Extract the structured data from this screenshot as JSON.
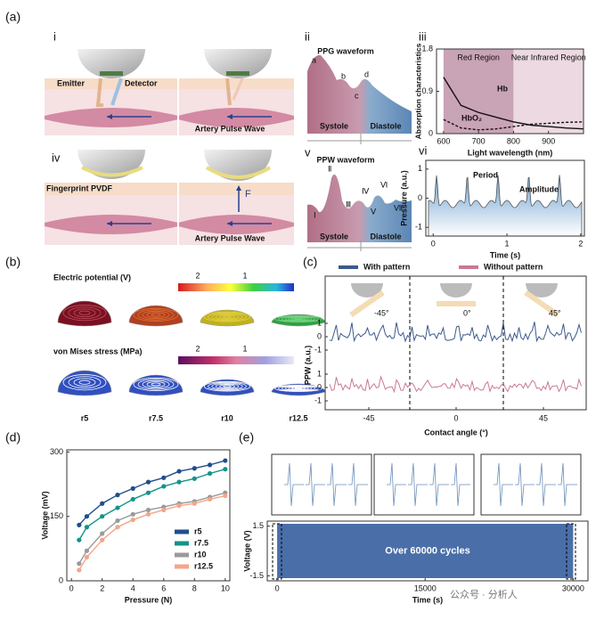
{
  "figure": {
    "a": {
      "label": "(a)",
      "i": "i",
      "ii": "ii",
      "iii": "iii",
      "iv": "iv",
      "v": "v",
      "vi": "vi",
      "emitter": "Emitter",
      "detector": "Detector",
      "pulse_i": "Artery Pulse Wave",
      "ppg_title": "PPG waveform",
      "ppg_points": [
        "a",
        "b",
        "c",
        "d"
      ],
      "systole_ii": "Systole",
      "diastole_ii": "Diastole",
      "fingerprint": "Fingerprint PVDF",
      "force": "F",
      "pulse_iv": "Artery Pulse Wave",
      "ppw_title": "PPW waveform",
      "ppw_points": [
        "Ⅰ",
        "Ⅱ",
        "Ⅲ",
        "Ⅳ",
        "Ⅴ",
        "Ⅵ",
        "Ⅶ"
      ],
      "systole_v": "Systole",
      "diastole_v": "Diastole"
    },
    "b": {
      "label": "(b)",
      "potential_title": "Electric potential (V)",
      "potential_ticks": [
        2,
        1
      ],
      "stress_title": "von Mises stress (MPa)",
      "stress_ticks": [
        2,
        1
      ],
      "samples": [
        "r5",
        "r7.5",
        "r10",
        "r12.5"
      ]
    },
    "c": {
      "label": "(c)",
      "legend": [
        "With pattern",
        "Without pattern"
      ],
      "legend_colors": [
        "#3d5a8c",
        "#c97a93"
      ],
      "angles": [
        "-45°",
        "0°",
        "45°"
      ],
      "xlabel": "Contact angle (°)",
      "ylabel": "PPW (a.u.)",
      "xticks": [
        -45,
        0,
        45
      ],
      "yticks": [
        1,
        0,
        -1
      ]
    },
    "d": {
      "label": "(d)"
    },
    "e": {
      "label": "(e)"
    },
    "watermark": "公众号 · 分析人"
  },
  "chart_data": [
    {
      "type": "line",
      "xlabel": "Light wavelength (nm)",
      "ylabel": "Absorption characteristics",
      "x": [
        600,
        650,
        700,
        750,
        800,
        850,
        900,
        950,
        1000
      ],
      "series": [
        {
          "name": "Hb",
          "color": "#111111",
          "dash": false,
          "values": [
            1.2,
            0.6,
            0.45,
            0.35,
            0.25,
            0.18,
            0.15,
            0.12,
            0.1
          ]
        },
        {
          "name": "HbO₂",
          "color": "#111111",
          "dash": true,
          "values": [
            0.3,
            0.12,
            0.08,
            0.1,
            0.15,
            0.2,
            0.22,
            0.24,
            0.25
          ]
        }
      ],
      "regions": [
        {
          "label": "Red Region",
          "range": [
            600,
            800
          ],
          "color": "#c9a3b6"
        },
        {
          "label": "Near Infrared Region",
          "range": [
            800,
            1000
          ],
          "color": "#ecd9e2"
        }
      ],
      "xlim": [
        580,
        1000
      ],
      "xticks": [
        600,
        700,
        800,
        900
      ],
      "ylim": [
        0,
        1.8
      ],
      "yticks": [
        0,
        0.9,
        1.8
      ]
    },
    {
      "type": "line",
      "xlabel": "Time (s)",
      "ylabel": "Pressure (a.u.)",
      "annotations": [
        "Period",
        "Amplitude"
      ],
      "series": [],
      "x": [],
      "xlim": [
        -0.1,
        2.05
      ],
      "xticks": [
        0,
        1,
        2
      ],
      "ylim": [
        -1.3,
        1.3
      ],
      "yticks": [
        -1,
        0,
        1
      ]
    },
    {
      "type": "line",
      "xlabel": "Pressure (N)",
      "ylabel": "Voltage (mV)",
      "x": [
        0.5,
        1,
        2,
        3,
        4,
        5,
        6,
        7,
        8,
        9,
        10
      ],
      "series": [
        {
          "name": "r5",
          "color": "#1f4e8c",
          "values": [
            130,
            150,
            180,
            200,
            215,
            230,
            240,
            255,
            262,
            270,
            280
          ]
        },
        {
          "name": "r7.5",
          "color": "#13948a",
          "values": [
            95,
            125,
            150,
            170,
            190,
            205,
            220,
            230,
            238,
            250,
            260
          ]
        },
        {
          "name": "r10",
          "color": "#9a9a9a",
          "values": [
            40,
            70,
            110,
            140,
            155,
            165,
            172,
            180,
            185,
            195,
            205
          ]
        },
        {
          "name": "r12.5",
          "color": "#f4a58a",
          "values": [
            25,
            55,
            95,
            125,
            142,
            155,
            165,
            175,
            180,
            190,
            198
          ]
        }
      ],
      "xlim": [
        -0.3,
        10.3
      ],
      "xticks": [
        0,
        2,
        4,
        6,
        8,
        10
      ],
      "ylim": [
        0,
        305
      ],
      "yticks": [
        0,
        150,
        300
      ]
    },
    {
      "type": "band",
      "xlabel": "Time (s)",
      "ylabel": "Voltage (V)",
      "banner": "Over 60000 cycles",
      "color": "#4a6ea8",
      "series": [],
      "x": [],
      "xlim": [
        -1000,
        31500
      ],
      "xticks": [
        0,
        15000,
        30000
      ],
      "ylim": [
        -1.8,
        1.8
      ],
      "yticks": [
        -1.5,
        1.5
      ]
    }
  ]
}
